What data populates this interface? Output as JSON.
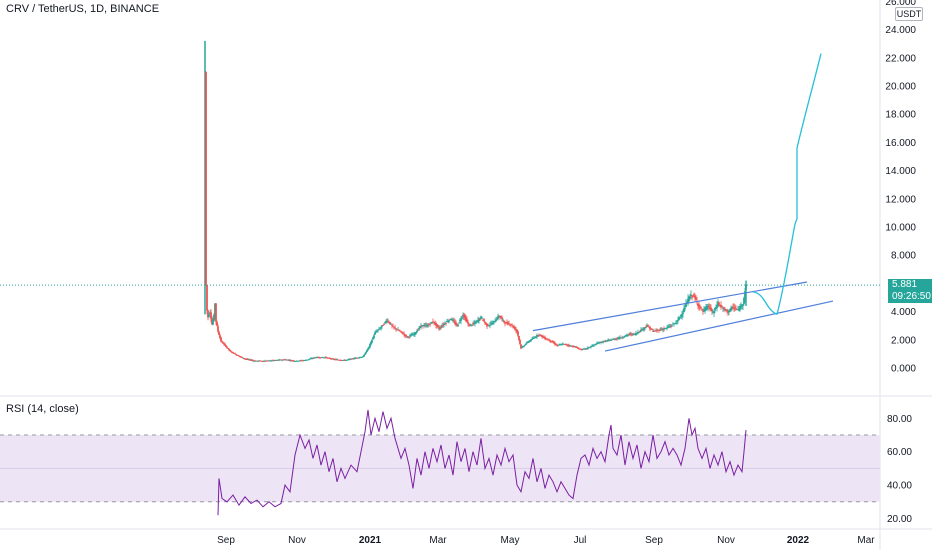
{
  "header": {
    "title": "CRV / TetherUS, 1D, BINANCE",
    "currency": "USDT"
  },
  "price_tag": {
    "price": "5.881",
    "countdown": "09:26:50",
    "color": "#26a69a"
  },
  "rsi_panel": {
    "title": "RSI (14, close)",
    "line_color": "#7b1fa2",
    "band_color": "#ede4f5"
  },
  "chart_data": [
    {
      "type": "candlestick",
      "title": "CRV / TetherUS, 1D, BINANCE",
      "ylabel": "USDT",
      "ylim": [
        -2,
        26
      ],
      "y_ticks": [
        "0.000",
        "2.000",
        "4.000",
        "6.000",
        "8.000",
        "10.000",
        "12.000",
        "14.000",
        "16.000",
        "18.000",
        "20.000",
        "22.000",
        "24.000",
        "26.000"
      ],
      "x_ticks": [
        "Sep",
        "Nov",
        "2021",
        "Mar",
        "May",
        "Jul",
        "Sep",
        "Nov",
        "2022",
        "Mar"
      ],
      "up_color": "#26a69a",
      "down_color": "#ef5350",
      "last_price": 5.881,
      "close": [
        {
          "t": 0.0,
          "v": 21.0
        },
        {
          "t": 0.5,
          "v": 7.5
        },
        {
          "t": 1.5,
          "v": 4.3
        },
        {
          "t": 3,
          "v": 3.6
        },
        {
          "t": 5,
          "v": 4.0
        },
        {
          "t": 7,
          "v": 3.1
        },
        {
          "t": 9,
          "v": 3.7
        },
        {
          "t": 10,
          "v": 4.6
        },
        {
          "t": 11,
          "v": 3.3
        },
        {
          "t": 13,
          "v": 2.6
        },
        {
          "t": 16,
          "v": 1.9
        },
        {
          "t": 20,
          "v": 1.6
        },
        {
          "t": 25,
          "v": 1.2
        },
        {
          "t": 32,
          "v": 0.9
        },
        {
          "t": 40,
          "v": 0.65
        },
        {
          "t": 50,
          "v": 0.5
        },
        {
          "t": 60,
          "v": 0.5
        },
        {
          "t": 70,
          "v": 0.55
        },
        {
          "t": 80,
          "v": 0.6
        },
        {
          "t": 90,
          "v": 0.5
        },
        {
          "t": 100,
          "v": 0.55
        },
        {
          "t": 110,
          "v": 0.75
        },
        {
          "t": 120,
          "v": 0.75
        },
        {
          "t": 130,
          "v": 0.6
        },
        {
          "t": 140,
          "v": 0.55
        },
        {
          "t": 150,
          "v": 0.7
        },
        {
          "t": 158,
          "v": 0.8
        },
        {
          "t": 164,
          "v": 1.5
        },
        {
          "t": 170,
          "v": 2.5
        },
        {
          "t": 176,
          "v": 2.9
        },
        {
          "t": 182,
          "v": 3.4
        },
        {
          "t": 188,
          "v": 2.9
        },
        {
          "t": 195,
          "v": 2.6
        },
        {
          "t": 202,
          "v": 2.2
        },
        {
          "t": 209,
          "v": 2.4
        },
        {
          "t": 216,
          "v": 3.0
        },
        {
          "t": 222,
          "v": 3.0
        },
        {
          "t": 228,
          "v": 3.3
        },
        {
          "t": 234,
          "v": 2.8
        },
        {
          "t": 240,
          "v": 3.2
        },
        {
          "t": 246,
          "v": 3.5
        },
        {
          "t": 252,
          "v": 3.0
        },
        {
          "t": 258,
          "v": 3.8
        },
        {
          "t": 264,
          "v": 3.0
        },
        {
          "t": 270,
          "v": 3.2
        },
        {
          "t": 276,
          "v": 3.6
        },
        {
          "t": 282,
          "v": 3.0
        },
        {
          "t": 288,
          "v": 3.2
        },
        {
          "t": 294,
          "v": 3.7
        },
        {
          "t": 300,
          "v": 3.2
        },
        {
          "t": 306,
          "v": 3.1
        },
        {
          "t": 312,
          "v": 2.6
        },
        {
          "t": 316,
          "v": 1.4
        },
        {
          "t": 322,
          "v": 1.8
        },
        {
          "t": 328,
          "v": 2.1
        },
        {
          "t": 334,
          "v": 2.4
        },
        {
          "t": 340,
          "v": 2.1
        },
        {
          "t": 346,
          "v": 1.9
        },
        {
          "t": 352,
          "v": 1.6
        },
        {
          "t": 358,
          "v": 1.7
        },
        {
          "t": 364,
          "v": 1.6
        },
        {
          "t": 370,
          "v": 1.5
        },
        {
          "t": 376,
          "v": 1.3
        },
        {
          "t": 382,
          "v": 1.4
        },
        {
          "t": 388,
          "v": 1.6
        },
        {
          "t": 394,
          "v": 1.8
        },
        {
          "t": 400,
          "v": 1.9
        },
        {
          "t": 406,
          "v": 2.0
        },
        {
          "t": 412,
          "v": 2.1
        },
        {
          "t": 418,
          "v": 2.2
        },
        {
          "t": 424,
          "v": 2.4
        },
        {
          "t": 430,
          "v": 2.4
        },
        {
          "t": 436,
          "v": 2.7
        },
        {
          "t": 442,
          "v": 3.0
        },
        {
          "t": 448,
          "v": 2.6
        },
        {
          "t": 454,
          "v": 2.7
        },
        {
          "t": 460,
          "v": 2.8
        },
        {
          "t": 466,
          "v": 3.0
        },
        {
          "t": 472,
          "v": 3.3
        },
        {
          "t": 478,
          "v": 4.0
        },
        {
          "t": 484,
          "v": 5.0
        },
        {
          "t": 488,
          "v": 5.2
        },
        {
          "t": 493,
          "v": 4.5
        },
        {
          "t": 498,
          "v": 4.0
        },
        {
          "t": 503,
          "v": 4.4
        },
        {
          "t": 508,
          "v": 3.9
        },
        {
          "t": 513,
          "v": 4.6
        },
        {
          "t": 518,
          "v": 4.2
        },
        {
          "t": 523,
          "v": 4.0
        },
        {
          "t": 528,
          "v": 4.3
        },
        {
          "t": 533,
          "v": 4.1
        },
        {
          "t": 538,
          "v": 4.6
        },
        {
          "t": 541,
          "v": 5.881
        }
      ]
    },
    {
      "type": "line",
      "title": "RSI (14, close)",
      "ylim": [
        15,
        87
      ],
      "y_ticks": [
        "20.00",
        "40.00",
        "60.00",
        "80.00"
      ],
      "band": [
        30,
        70
      ],
      "values": [
        {
          "t": 13,
          "v": 22
        },
        {
          "t": 14,
          "v": 44
        },
        {
          "t": 17,
          "v": 32
        },
        {
          "t": 22,
          "v": 30
        },
        {
          "t": 28,
          "v": 34
        },
        {
          "t": 34,
          "v": 28
        },
        {
          "t": 40,
          "v": 33
        },
        {
          "t": 46,
          "v": 29
        },
        {
          "t": 52,
          "v": 31
        },
        {
          "t": 58,
          "v": 27
        },
        {
          "t": 64,
          "v": 30
        },
        {
          "t": 70,
          "v": 27
        },
        {
          "t": 76,
          "v": 29
        },
        {
          "t": 80,
          "v": 40
        },
        {
          "t": 85,
          "v": 36
        },
        {
          "t": 90,
          "v": 58
        },
        {
          "t": 95,
          "v": 70
        },
        {
          "t": 100,
          "v": 62
        },
        {
          "t": 104,
          "v": 67
        },
        {
          "t": 108,
          "v": 56
        },
        {
          "t": 112,
          "v": 64
        },
        {
          "t": 116,
          "v": 52
        },
        {
          "t": 120,
          "v": 60
        },
        {
          "t": 124,
          "v": 48
        },
        {
          "t": 128,
          "v": 56
        },
        {
          "t": 132,
          "v": 42
        },
        {
          "t": 136,
          "v": 50
        },
        {
          "t": 140,
          "v": 44
        },
        {
          "t": 146,
          "v": 52
        },
        {
          "t": 152,
          "v": 48
        },
        {
          "t": 156,
          "v": 60
        },
        {
          "t": 160,
          "v": 72
        },
        {
          "t": 163,
          "v": 85
        },
        {
          "t": 166,
          "v": 70
        },
        {
          "t": 170,
          "v": 80
        },
        {
          "t": 174,
          "v": 72
        },
        {
          "t": 178,
          "v": 84
        },
        {
          "t": 182,
          "v": 74
        },
        {
          "t": 186,
          "v": 80
        },
        {
          "t": 190,
          "v": 68
        },
        {
          "t": 196,
          "v": 56
        },
        {
          "t": 200,
          "v": 62
        },
        {
          "t": 204,
          "v": 52
        },
        {
          "t": 208,
          "v": 38
        },
        {
          "t": 212,
          "v": 56
        },
        {
          "t": 216,
          "v": 46
        },
        {
          "t": 220,
          "v": 60
        },
        {
          "t": 224,
          "v": 50
        },
        {
          "t": 228,
          "v": 62
        },
        {
          "t": 232,
          "v": 54
        },
        {
          "t": 236,
          "v": 64
        },
        {
          "t": 240,
          "v": 50
        },
        {
          "t": 244,
          "v": 58
        },
        {
          "t": 248,
          "v": 46
        },
        {
          "t": 252,
          "v": 66
        },
        {
          "t": 256,
          "v": 54
        },
        {
          "t": 260,
          "v": 62
        },
        {
          "t": 264,
          "v": 48
        },
        {
          "t": 268,
          "v": 60
        },
        {
          "t": 272,
          "v": 52
        },
        {
          "t": 276,
          "v": 68
        },
        {
          "t": 280,
          "v": 50
        },
        {
          "t": 284,
          "v": 56
        },
        {
          "t": 288,
          "v": 46
        },
        {
          "t": 292,
          "v": 58
        },
        {
          "t": 296,
          "v": 52
        },
        {
          "t": 300,
          "v": 62
        },
        {
          "t": 304,
          "v": 54
        },
        {
          "t": 308,
          "v": 58
        },
        {
          "t": 312,
          "v": 40
        },
        {
          "t": 316,
          "v": 36
        },
        {
          "t": 320,
          "v": 48
        },
        {
          "t": 324,
          "v": 44
        },
        {
          "t": 328,
          "v": 56
        },
        {
          "t": 332,
          "v": 42
        },
        {
          "t": 336,
          "v": 50
        },
        {
          "t": 340,
          "v": 38
        },
        {
          "t": 344,
          "v": 46
        },
        {
          "t": 348,
          "v": 42
        },
        {
          "t": 352,
          "v": 36
        },
        {
          "t": 356,
          "v": 42
        },
        {
          "t": 360,
          "v": 38
        },
        {
          "t": 364,
          "v": 34
        },
        {
          "t": 368,
          "v": 32
        },
        {
          "t": 372,
          "v": 46
        },
        {
          "t": 376,
          "v": 56
        },
        {
          "t": 380,
          "v": 58
        },
        {
          "t": 384,
          "v": 52
        },
        {
          "t": 388,
          "v": 62
        },
        {
          "t": 392,
          "v": 56
        },
        {
          "t": 396,
          "v": 60
        },
        {
          "t": 400,
          "v": 54
        },
        {
          "t": 404,
          "v": 70
        },
        {
          "t": 406,
          "v": 76
        },
        {
          "t": 408,
          "v": 62
        },
        {
          "t": 412,
          "v": 58
        },
        {
          "t": 416,
          "v": 70
        },
        {
          "t": 420,
          "v": 52
        },
        {
          "t": 424,
          "v": 66
        },
        {
          "t": 428,
          "v": 56
        },
        {
          "t": 432,
          "v": 64
        },
        {
          "t": 436,
          "v": 50
        },
        {
          "t": 440,
          "v": 60
        },
        {
          "t": 444,
          "v": 54
        },
        {
          "t": 448,
          "v": 70
        },
        {
          "t": 452,
          "v": 56
        },
        {
          "t": 456,
          "v": 60
        },
        {
          "t": 460,
          "v": 66
        },
        {
          "t": 464,
          "v": 58
        },
        {
          "t": 468,
          "v": 62
        },
        {
          "t": 472,
          "v": 58
        },
        {
          "t": 476,
          "v": 52
        },
        {
          "t": 480,
          "v": 62
        },
        {
          "t": 484,
          "v": 80
        },
        {
          "t": 487,
          "v": 70
        },
        {
          "t": 490,
          "v": 74
        },
        {
          "t": 493,
          "v": 62
        },
        {
          "t": 497,
          "v": 56
        },
        {
          "t": 501,
          "v": 62
        },
        {
          "t": 505,
          "v": 50
        },
        {
          "t": 509,
          "v": 58
        },
        {
          "t": 513,
          "v": 52
        },
        {
          "t": 517,
          "v": 60
        },
        {
          "t": 521,
          "v": 48
        },
        {
          "t": 525,
          "v": 54
        },
        {
          "t": 529,
          "v": 46
        },
        {
          "t": 533,
          "v": 52
        },
        {
          "t": 537,
          "v": 48
        },
        {
          "t": 539,
          "v": 60
        },
        {
          "t": 541,
          "v": 73
        }
      ]
    }
  ],
  "drawings": {
    "channel_color": "#4f7fdb",
    "projection_color": "#26bfd9"
  }
}
